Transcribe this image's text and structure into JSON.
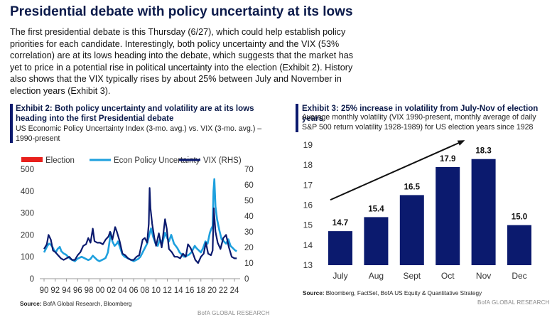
{
  "headline": "Presidential debate with policy uncertainty at its lows",
  "intro": "The first presidential debate is this Thursday (6/27), which could help establish policy priorities for each candidate. Interestingly, both policy uncertainty and the VIX (53% correlation) are at its lows heading into the debate, which suggests that the market has yet to price in a potential rise in political uncertainty into the election (Exhibit 2). History also shows that the VIX typically rises by about 25% between July and November in election years (Exhibit 3).",
  "exhibit2": {
    "title": "Exhibit 2: Both policy uncertainty and volatility are at its lows heading into the first Presidential debate",
    "subtitle": "US Economic Policy Uncertainty Index (3-mo. avg.) vs. VIX (3-mo. avg.) – 1990-present",
    "source_label": "Source:",
    "source_text": " BofA Global Research, Bloomberg",
    "footer": "BofA GLOBAL RESEARCH"
  },
  "exhibit3": {
    "title": "Exhibit 3: 25% increase in volatility from July-Nov of election years",
    "subtitle": "Average monthly volatility (VIX 1990-present, monthly average of daily S&P 500 return volatility 1928-1989) for US election years since 1928",
    "source_label": "Source:",
    "source_text": " Bloomberg, FactSet, BofA US Equity & Quantitative Strategy",
    "footer": "BofA GLOBAL RESEARCH"
  },
  "colors": {
    "navy": "#0b1a6e",
    "light_blue": "#1ea0de",
    "red": "#e8201c"
  },
  "chart_data": [
    {
      "type": "line",
      "title": "Exhibit 2: Both policy uncertainty and volatility are at its lows heading into the first Presidential debate",
      "legend": [
        "Election",
        "Econ Policy Uncertainty",
        "VIX (RHS)"
      ],
      "legend_placement": "top",
      "x_ticks": [
        "90",
        "92",
        "94",
        "96",
        "98",
        "00",
        "02",
        "04",
        "06",
        "08",
        "10",
        "12",
        "14",
        "16",
        "18",
        "20",
        "22",
        "24"
      ],
      "x_range": [
        1990,
        2024.5
      ],
      "ylim_left": [
        0,
        500
      ],
      "y_ticks_left": [
        0,
        100,
        200,
        300,
        400,
        500
      ],
      "ylim_right": [
        0,
        70
      ],
      "y_ticks_right": [
        0,
        10,
        20,
        30,
        40,
        50,
        60,
        70
      ],
      "grid": false,
      "series": [
        {
          "name": "Econ Policy Uncertainty",
          "axis": "left",
          "color": "#1ea0de",
          "x": [
            1990.0,
            1990.3,
            1990.6,
            1990.9,
            1991.2,
            1991.5,
            1991.8,
            1992.1,
            1992.4,
            1992.8,
            1993.1,
            1993.5,
            1993.9,
            1994.3,
            1994.7,
            1995.1,
            1995.5,
            1995.9,
            1996.3,
            1996.7,
            1997.1,
            1997.5,
            1997.9,
            1998.3,
            1998.7,
            1999.1,
            1999.5,
            1999.9,
            2000.3,
            2000.7,
            2001.0,
            2001.4,
            2001.7,
            2001.9,
            2002.2,
            2002.6,
            2003.0,
            2003.2,
            2003.6,
            2004.0,
            2004.4,
            2004.8,
            2005.2,
            2005.6,
            2006.0,
            2006.4,
            2006.8,
            2007.2,
            2007.6,
            2008.0,
            2008.4,
            2008.8,
            2009.1,
            2009.5,
            2009.9,
            2010.3,
            2010.7,
            2011.1,
            2011.6,
            2011.9,
            2012.3,
            2012.7,
            2012.9,
            2013.2,
            2013.8,
            2014.2,
            2014.6,
            2015.0,
            2015.5,
            2015.9,
            2016.3,
            2016.6,
            2016.9,
            2017.2,
            2017.6,
            2018.0,
            2018.4,
            2018.8,
            2019.2,
            2019.6,
            2019.9,
            2020.1,
            2020.25,
            2020.4,
            2020.6,
            2020.9,
            2021.3,
            2021.7,
            2022.1,
            2022.5,
            2022.9,
            2023.3,
            2023.7,
            2024.1,
            2024.4
          ],
          "y": [
            120,
            135,
            150,
            160,
            155,
            145,
            130,
            120,
            135,
            145,
            125,
            115,
            110,
            100,
            90,
            85,
            80,
            90,
            95,
            100,
            95,
            90,
            85,
            90,
            105,
            95,
            85,
            80,
            85,
            90,
            95,
            120,
            170,
            210,
            170,
            150,
            160,
            170,
            140,
            110,
            100,
            95,
            90,
            85,
            80,
            85,
            90,
            100,
            120,
            140,
            160,
            200,
            230,
            190,
            160,
            150,
            180,
            160,
            210,
            190,
            170,
            200,
            185,
            160,
            140,
            120,
            110,
            100,
            105,
            110,
            120,
            135,
            150,
            140,
            130,
            120,
            140,
            170,
            160,
            210,
            230,
            240,
            400,
            455,
            330,
            270,
            220,
            180,
            170,
            160,
            180,
            150,
            140,
            130,
            125
          ]
        },
        {
          "name": "VIX (RHS)",
          "axis": "right",
          "color": "#0b1a6e",
          "x": [
            1990.0,
            1990.5,
            1990.8,
            1991.2,
            1991.6,
            1992.0,
            1992.5,
            1993.0,
            1993.5,
            1994.0,
            1994.5,
            1995.0,
            1995.5,
            1996.0,
            1996.5,
            1997.0,
            1997.5,
            1997.9,
            1998.3,
            1998.7,
            1999.0,
            1999.5,
            2000.0,
            2000.5,
            2001.0,
            2001.5,
            2001.8,
            2002.2,
            2002.7,
            2003.0,
            2003.5,
            2004.0,
            2004.5,
            2005.0,
            2005.5,
            2006.0,
            2006.5,
            2007.0,
            2007.6,
            2008.0,
            2008.4,
            2008.7,
            2008.85,
            2009.0,
            2009.3,
            2009.7,
            2010.0,
            2010.5,
            2011.0,
            2011.6,
            2011.9,
            2012.3,
            2012.8,
            2013.3,
            2013.8,
            2014.3,
            2014.8,
            2015.3,
            2015.7,
            2016.1,
            2016.5,
            2017.0,
            2017.5,
            2018.0,
            2018.5,
            2018.9,
            2019.3,
            2019.8,
            2020.1,
            2020.3,
            2020.6,
            2021.0,
            2021.5,
            2022.0,
            2022.5,
            2023.0,
            2023.5,
            2024.0,
            2024.4
          ],
          "y": [
            19,
            22,
            28,
            25,
            18,
            17,
            15,
            13,
            12,
            13,
            14,
            12,
            12,
            15,
            17,
            21,
            22,
            26,
            23,
            32,
            24,
            23,
            23,
            22,
            25,
            27,
            30,
            25,
            33,
            30,
            24,
            16,
            15,
            13,
            12,
            12,
            14,
            15,
            25,
            26,
            23,
            35,
            58,
            45,
            35,
            26,
            21,
            29,
            20,
            38,
            32,
            19,
            17,
            14,
            14,
            13,
            16,
            14,
            22,
            20,
            17,
            12,
            10,
            14,
            16,
            23,
            16,
            15,
            18,
            45,
            30,
            23,
            19,
            26,
            28,
            20,
            14,
            13,
            13
          ]
        },
        {
          "name": "Election",
          "axis": "left",
          "color": "#e8201c",
          "x": [],
          "y": []
        }
      ],
      "xlabel": "",
      "ylabel": ""
    },
    {
      "type": "bar",
      "title": "Exhibit 3: 25% increase in volatility from July-Nov of election years",
      "categories": [
        "July",
        "Aug",
        "Sept",
        "Oct",
        "Nov",
        "Dec"
      ],
      "values": [
        14.7,
        15.4,
        16.5,
        17.9,
        18.3,
        15.0
      ],
      "value_labels": [
        "14.7",
        "15.4",
        "16.5",
        "17.9",
        "18.3",
        "15.0"
      ],
      "ylim": [
        13,
        19
      ],
      "y_ticks": [
        13,
        14,
        15,
        16,
        17,
        18,
        19
      ],
      "color": "#0b1a6e",
      "grid": false,
      "trend_arrow": {
        "from_category": "July",
        "to_category": "Nov"
      },
      "xlabel": "",
      "ylabel": ""
    }
  ]
}
